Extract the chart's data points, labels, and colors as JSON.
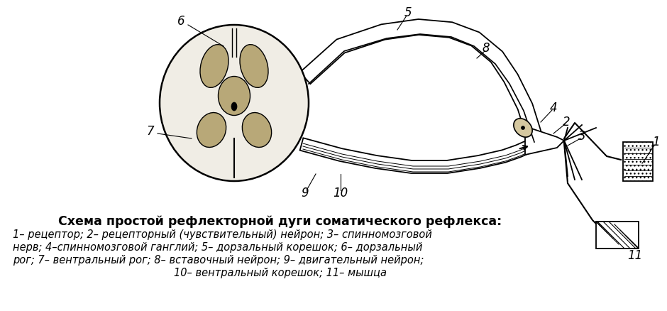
{
  "fig_width": 9.4,
  "fig_height": 4.38,
  "dpi": 100,
  "background_color": "#ffffff",
  "title": "Схема простой рефлекторной дуги соматического рефлекса:",
  "legend_lines": [
    "1– рецептор; 2– рецепторный (чувствительный) нейрон; 3– спинномозговой",
    "нерв; 4–спинномозговой ганглий; 5– дорзальный корешок; 6– дорзальный",
    "рог; 7– вентральный рог; 8– вставочный нейрон; 9– двигательный нейрон;",
    "10– вентральный корешок; 11– мышца"
  ]
}
